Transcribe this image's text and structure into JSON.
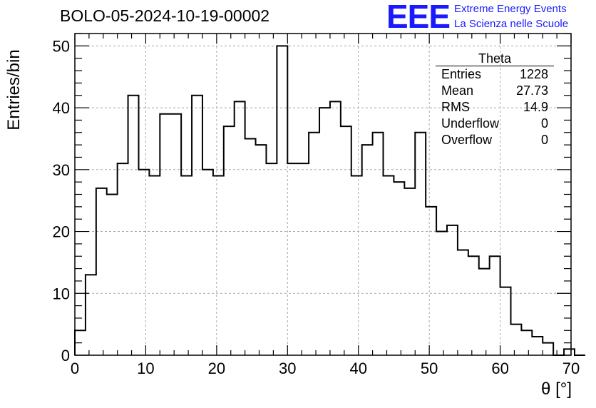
{
  "header": {
    "title": "BOLO-05-2024-10-19-00002",
    "logo_text": "EEE",
    "logo_line1": "Extreme Energy Events",
    "logo_line2": "La Scienza nelle Scuole"
  },
  "stats_box": {
    "title": "Theta",
    "rows": [
      {
        "label": "Entries",
        "value": "1228"
      },
      {
        "label": "Mean",
        "value": "27.73"
      },
      {
        "label": "RMS",
        "value": "14.9"
      },
      {
        "label": "Underflow",
        "value": "0"
      },
      {
        "label": "Overflow",
        "value": "0"
      }
    ]
  },
  "chart_data": {
    "type": "histogram",
    "title": "BOLO-05-2024-10-19-00002",
    "xlabel": "θ [°]",
    "ylabel": "Entries/bin",
    "xlim": [
      0,
      70
    ],
    "ylim": [
      0,
      52
    ],
    "x_ticks": [
      0,
      10,
      20,
      30,
      40,
      50,
      60,
      70
    ],
    "y_ticks": [
      0,
      10,
      20,
      30,
      40,
      50
    ],
    "grid": true,
    "bin_width": 1.5,
    "bin_start": 0,
    "values": [
      4,
      13,
      27,
      26,
      31,
      42,
      30,
      29,
      39,
      39,
      29,
      42,
      30,
      29,
      37,
      41,
      35,
      34,
      31,
      50,
      31,
      31,
      36,
      40,
      41,
      37,
      29,
      34,
      36,
      29,
      28,
      27,
      36,
      24,
      20,
      21,
      17,
      16,
      14,
      16,
      11,
      5,
      4,
      3,
      2,
      0,
      1,
      0
    ]
  }
}
